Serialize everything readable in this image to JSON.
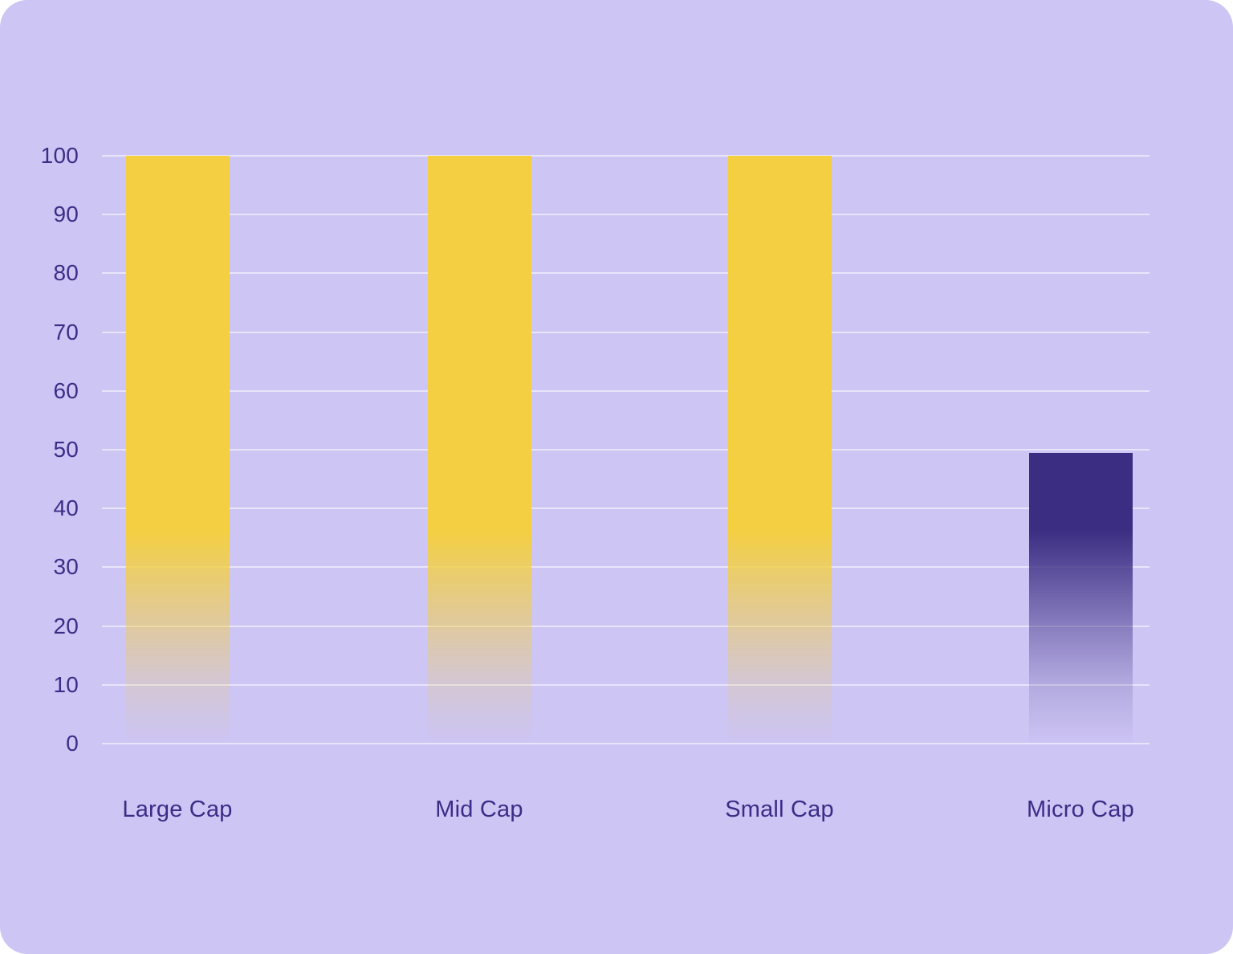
{
  "chart_data": {
    "type": "bar",
    "title": "",
    "xlabel": "",
    "ylabel": "",
    "categories": [
      "Large Cap",
      "Mid Cap",
      "Small Cap",
      "Micro Cap"
    ],
    "values": [
      100,
      100,
      100,
      49.5
    ],
    "ylim": [
      0,
      100
    ],
    "yticks": [
      0,
      10,
      20,
      30,
      40,
      50,
      60,
      70,
      80,
      90,
      100
    ],
    "grid": "horizontal gridlines only",
    "legend": "none",
    "bar_colors": [
      "#F3CF41",
      "#F3CF41",
      "#F3CF41",
      "#3B2D82"
    ],
    "bar_style": "bars fade to transparent toward the baseline"
  },
  "style": {
    "card_background": "#CDC5F4",
    "grid_color": "rgba(255,255,255,0.55)",
    "text_color": "#3D2C87",
    "yellow_bar_color": "#F3CF41",
    "indigo_bar_color": "#3B2D82"
  }
}
